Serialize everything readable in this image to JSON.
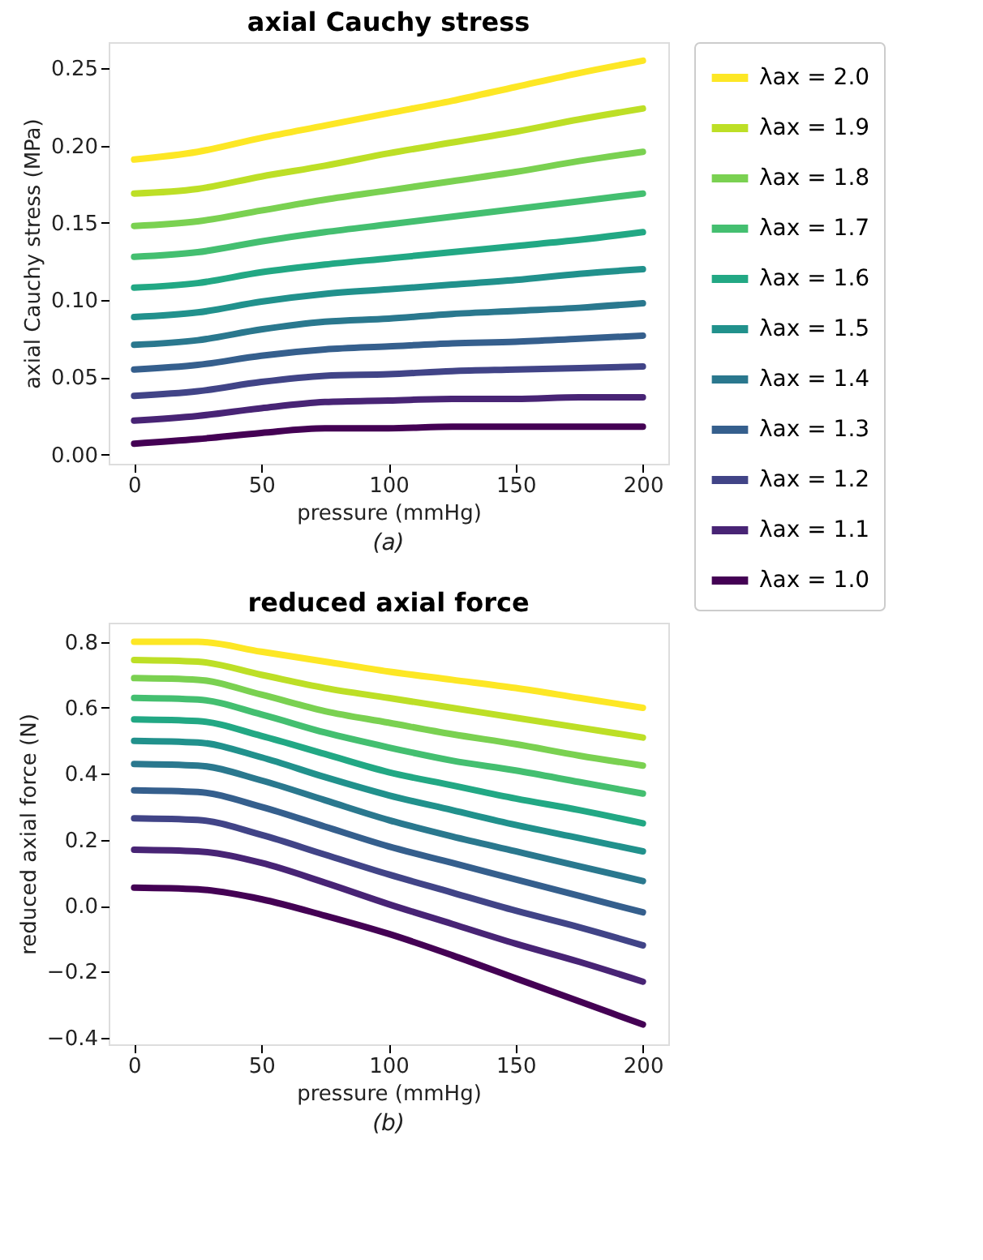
{
  "chart_data": [
    {
      "type": "line",
      "title": "axial Cauchy stress",
      "xlabel": "pressure (mmHg)",
      "ylabel": "axial Cauchy stress (MPa)",
      "annotations": [
        "(a)"
      ],
      "x": [
        0,
        25,
        50,
        75,
        100,
        125,
        150,
        175,
        200
      ],
      "xlim": [
        -10,
        210
      ],
      "xticks": [
        0,
        50,
        100,
        150,
        200
      ],
      "ylim": [
        -0.006,
        0.267
      ],
      "yticks": [
        {
          "value": 0,
          "label": "0.00"
        },
        0.05,
        {
          "value": 0.1,
          "label": "0.10"
        },
        0.15,
        {
          "value": 0.2,
          "label": "0.20"
        },
        0.25
      ],
      "grid": false,
      "legend": "right",
      "marker": "none",
      "line_style": "solid",
      "series": [
        {
          "name": "λax = 2.0",
          "color": "#fde725",
          "values": [
            0.191,
            0.196,
            0.205,
            0.213,
            0.221,
            0.229,
            0.238,
            0.247,
            0.255
          ]
        },
        {
          "name": "λax = 1.9",
          "color": "#bddf26",
          "values": [
            0.169,
            0.172,
            0.18,
            0.187,
            0.195,
            0.202,
            0.209,
            0.217,
            0.224
          ]
        },
        {
          "name": "λax = 1.8",
          "color": "#7ad151",
          "values": [
            0.148,
            0.151,
            0.158,
            0.165,
            0.171,
            0.177,
            0.183,
            0.19,
            0.196
          ]
        },
        {
          "name": "λax = 1.7",
          "color": "#44bf70",
          "values": [
            0.128,
            0.131,
            0.138,
            0.144,
            0.149,
            0.154,
            0.159,
            0.164,
            0.169
          ]
        },
        {
          "name": "λax = 1.6",
          "color": "#22a884",
          "values": [
            0.108,
            0.111,
            0.118,
            0.123,
            0.127,
            0.131,
            0.135,
            0.139,
            0.144
          ]
        },
        {
          "name": "λax = 1.5",
          "color": "#21918c",
          "values": [
            0.089,
            0.092,
            0.099,
            0.104,
            0.107,
            0.11,
            0.113,
            0.117,
            0.12
          ]
        },
        {
          "name": "λax = 1.4",
          "color": "#2a788e",
          "values": [
            0.071,
            0.074,
            0.081,
            0.086,
            0.088,
            0.091,
            0.093,
            0.095,
            0.098
          ]
        },
        {
          "name": "λax = 1.3",
          "color": "#355f8d",
          "values": [
            0.055,
            0.058,
            0.064,
            0.068,
            0.07,
            0.072,
            0.073,
            0.075,
            0.077
          ]
        },
        {
          "name": "λax = 1.2",
          "color": "#414487",
          "values": [
            0.038,
            0.041,
            0.047,
            0.051,
            0.052,
            0.054,
            0.055,
            0.056,
            0.057
          ]
        },
        {
          "name": "λax = 1.1",
          "color": "#482475",
          "values": [
            0.022,
            0.025,
            0.03,
            0.034,
            0.035,
            0.036,
            0.036,
            0.037,
            0.037
          ]
        },
        {
          "name": "λax = 1.0",
          "color": "#440154",
          "values": [
            0.007,
            0.01,
            0.014,
            0.017,
            0.017,
            0.018,
            0.018,
            0.018,
            0.018
          ]
        }
      ]
    },
    {
      "type": "line",
      "title": "reduced axial force",
      "xlabel": "pressure (mmHg)",
      "ylabel": "reduced axial force (N)",
      "annotations": [
        "(b)"
      ],
      "x": [
        0,
        25,
        50,
        75,
        100,
        125,
        150,
        175,
        200
      ],
      "xlim": [
        -10,
        210
      ],
      "xticks": [
        0,
        50,
        100,
        150,
        200
      ],
      "ylim": [
        -0.42,
        0.858
      ],
      "yticks": [
        {
          "value": -0.4,
          "label": "−0.4"
        },
        {
          "value": -0.2,
          "label": "−0.2"
        },
        {
          "value": 0,
          "label": "0.0"
        },
        0.2,
        0.4,
        0.6,
        0.8
      ],
      "grid": false,
      "legend": false,
      "marker": "none",
      "line_style": "solid",
      "series": [
        {
          "name": "λax = 2.0",
          "color": "#fde725",
          "values": [
            0.8,
            0.8,
            0.77,
            0.74,
            0.71,
            0.685,
            0.66,
            0.63,
            0.6
          ]
        },
        {
          "name": "λax = 1.9",
          "color": "#bddf26",
          "values": [
            0.745,
            0.74,
            0.7,
            0.66,
            0.63,
            0.6,
            0.57,
            0.54,
            0.51
          ]
        },
        {
          "name": "λax = 1.8",
          "color": "#7ad151",
          "values": [
            0.69,
            0.685,
            0.64,
            0.59,
            0.555,
            0.52,
            0.49,
            0.455,
            0.425
          ]
        },
        {
          "name": "λax = 1.7",
          "color": "#44bf70",
          "values": [
            0.63,
            0.625,
            0.58,
            0.525,
            0.48,
            0.44,
            0.41,
            0.375,
            0.34
          ]
        },
        {
          "name": "λax = 1.6",
          "color": "#22a884",
          "values": [
            0.565,
            0.56,
            0.515,
            0.46,
            0.405,
            0.365,
            0.325,
            0.29,
            0.25
          ]
        },
        {
          "name": "λax = 1.5",
          "color": "#21918c",
          "values": [
            0.5,
            0.495,
            0.45,
            0.39,
            0.335,
            0.29,
            0.245,
            0.205,
            0.165
          ]
        },
        {
          "name": "λax = 1.4",
          "color": "#2a788e",
          "values": [
            0.43,
            0.425,
            0.38,
            0.32,
            0.26,
            0.21,
            0.165,
            0.12,
            0.075
          ]
        },
        {
          "name": "λax = 1.3",
          "color": "#355f8d",
          "values": [
            0.35,
            0.345,
            0.3,
            0.24,
            0.18,
            0.13,
            0.08,
            0.03,
            -0.02
          ]
        },
        {
          "name": "λax = 1.2",
          "color": "#414487",
          "values": [
            0.265,
            0.26,
            0.215,
            0.155,
            0.095,
            0.04,
            -0.015,
            -0.065,
            -0.12
          ]
        },
        {
          "name": "λax = 1.1",
          "color": "#482475",
          "values": [
            0.17,
            0.165,
            0.13,
            0.07,
            0.005,
            -0.055,
            -0.115,
            -0.17,
            -0.23
          ]
        },
        {
          "name": "λax = 1.0",
          "color": "#440154",
          "values": [
            0.055,
            0.05,
            0.02,
            -0.03,
            -0.085,
            -0.15,
            -0.22,
            -0.29,
            -0.36
          ]
        }
      ]
    }
  ]
}
